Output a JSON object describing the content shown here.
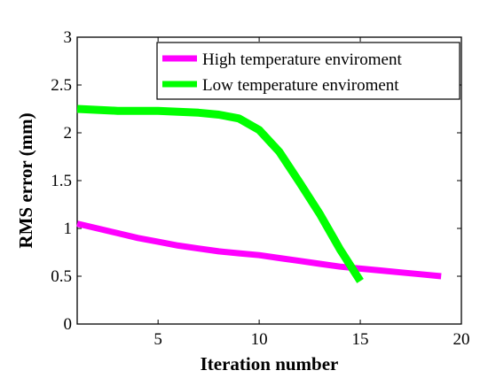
{
  "chart_data": {
    "type": "line",
    "xlabel": "Iteration number",
    "ylabel": "RMS error (mm)",
    "xlim": [
      1,
      20
    ],
    "ylim": [
      0,
      3
    ],
    "xticks": [
      5,
      10,
      15,
      20
    ],
    "yticks": [
      0,
      0.5,
      1,
      1.5,
      2,
      2.5,
      3
    ],
    "ytick_labels": [
      "0",
      "0.5",
      "1",
      "1.5",
      "2",
      "2.5",
      "3"
    ],
    "xtick_labels": [
      "5",
      "10",
      "15",
      "20"
    ],
    "grid": false,
    "legend_position": "top-right",
    "series": [
      {
        "name": "High temperature enviroment",
        "color": "#ff00ff",
        "x": [
          1,
          2,
          3,
          4,
          5,
          6,
          7,
          8,
          9,
          10,
          11,
          12,
          13,
          14,
          15,
          16,
          17,
          18,
          19
        ],
        "y": [
          1.05,
          1.0,
          0.95,
          0.9,
          0.86,
          0.82,
          0.79,
          0.76,
          0.74,
          0.72,
          0.69,
          0.66,
          0.63,
          0.6,
          0.58,
          0.56,
          0.54,
          0.52,
          0.5
        ]
      },
      {
        "name": "Low temperature enviroment",
        "color": "#00ff00",
        "x": [
          1,
          2,
          3,
          4,
          5,
          6,
          7,
          8,
          9,
          10,
          11,
          12,
          13,
          14,
          15
        ],
        "y": [
          2.25,
          2.24,
          2.23,
          2.23,
          2.23,
          2.22,
          2.21,
          2.19,
          2.15,
          2.03,
          1.8,
          1.48,
          1.15,
          0.78,
          0.45
        ]
      }
    ]
  }
}
